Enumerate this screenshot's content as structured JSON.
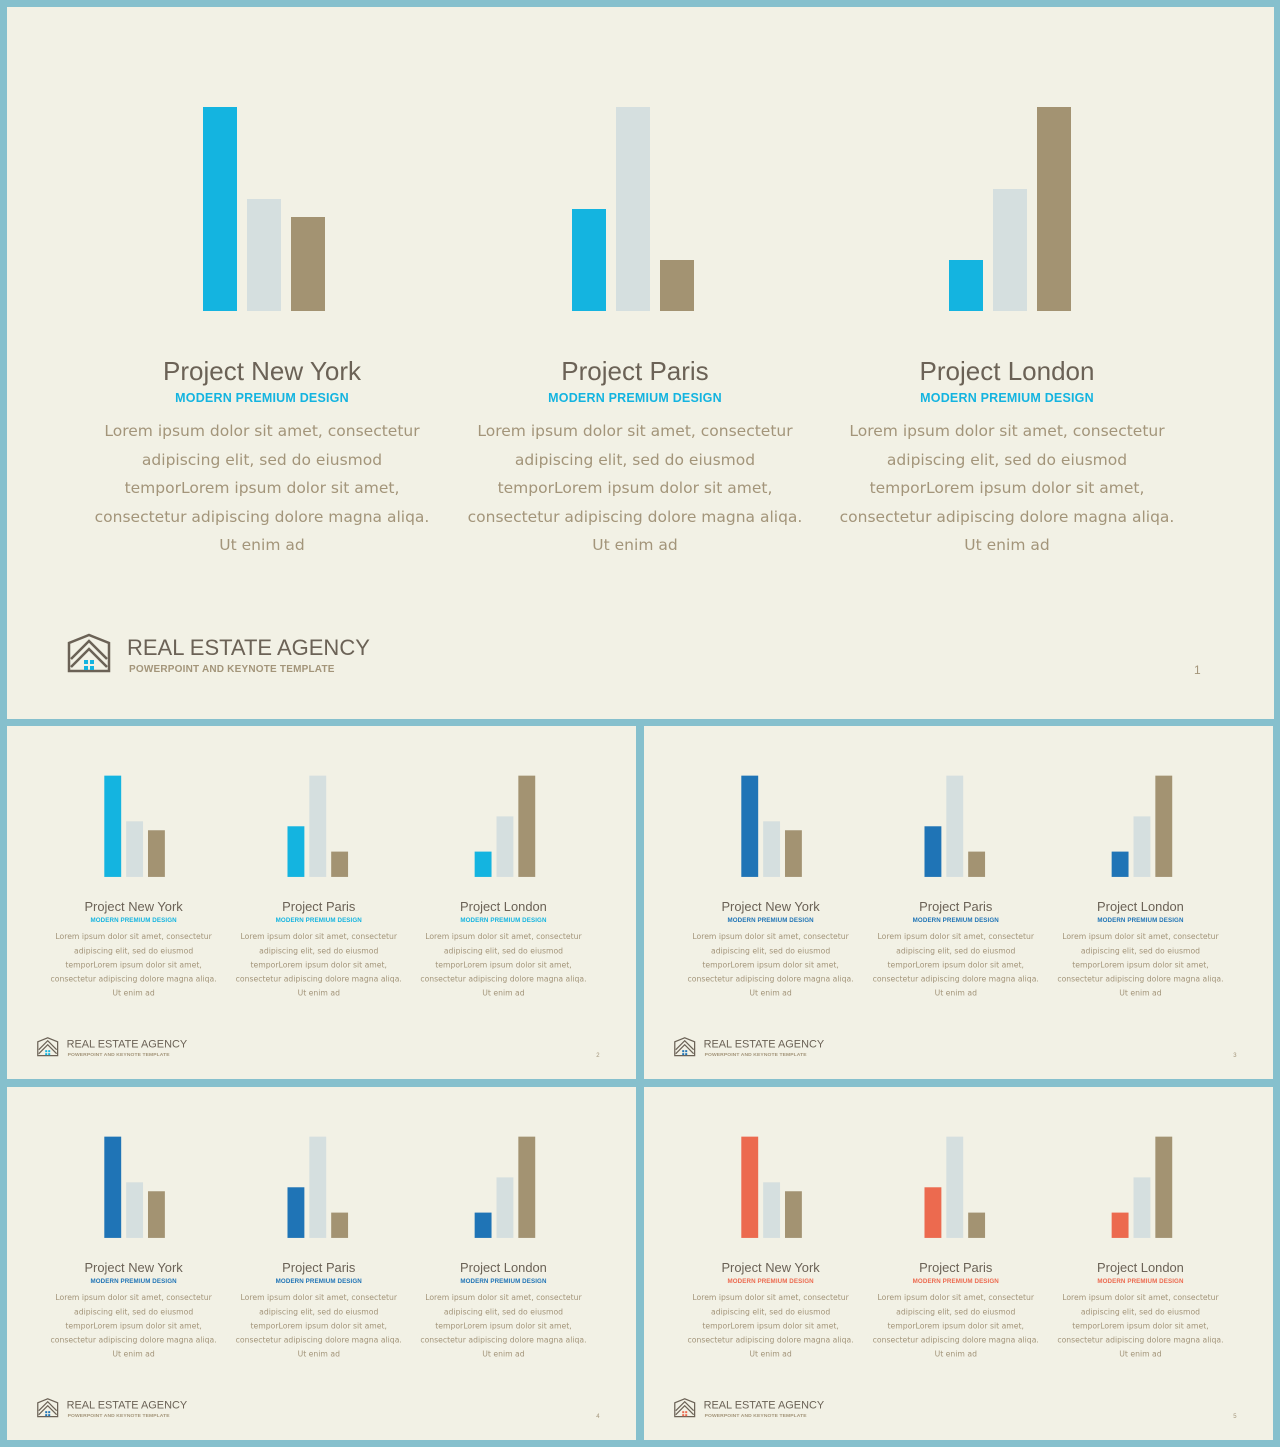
{
  "slides": [
    {
      "page_number": "1",
      "accent_color": "#14b4e0",
      "projects": [
        {
          "title": "Project New York",
          "subtitle": "MODERN PREMIUM DESIGN",
          "body": "Lorem ipsum dolor sit amet, consectetur adipiscing elit, sed do eiusmod temporLorem ipsum dolor sit amet, consectetur adipiscing dolore magna aliqa. Ut enim ad"
        },
        {
          "title": "Project Paris",
          "subtitle": "MODERN PREMIUM DESIGN",
          "body": "Lorem ipsum dolor sit amet, consectetur adipiscing elit, sed do eiusmod temporLorem ipsum dolor sit amet, consectetur adipiscing dolore magna aliqa. Ut enim ad"
        },
        {
          "title": "Project London",
          "subtitle": "MODERN PREMIUM DESIGN",
          "body": "Lorem ipsum dolor sit amet, consectetur adipiscing elit, sed do eiusmod temporLorem ipsum dolor sit amet, consectetur adipiscing dolore magna aliqa. Ut enim ad"
        }
      ]
    },
    {
      "page_number": "2",
      "accent_color": "#14b4e0",
      "projects": [
        {
          "title": "Project New York",
          "subtitle": "MODERN PREMIUM DESIGN",
          "body": "Lorem ipsum dolor sit amet, consectetur adipiscing elit, sed do eiusmod temporLorem ipsum dolor sit amet, consectetur adipiscing dolore magna aliqa. Ut enim ad"
        },
        {
          "title": "Project Paris",
          "subtitle": "MODERN PREMIUM DESIGN",
          "body": "Lorem ipsum dolor sit amet, consectetur adipiscing elit, sed do eiusmod temporLorem ipsum dolor sit amet, consectetur adipiscing dolore magna aliqa. Ut enim ad"
        },
        {
          "title": "Project London",
          "subtitle": "MODERN PREMIUM DESIGN",
          "body": "Lorem ipsum dolor sit amet, consectetur adipiscing elit, sed do eiusmod temporLorem ipsum dolor sit amet, consectetur adipiscing dolore magna aliqa. Ut enim ad"
        }
      ]
    },
    {
      "page_number": "3",
      "accent_color": "#1f74b6",
      "projects": [
        {
          "title": "Project New York",
          "subtitle": "MODERN PREMIUM DESIGN",
          "body": "Lorem ipsum dolor sit amet, consectetur adipiscing elit, sed do eiusmod temporLorem ipsum dolor sit amet, consectetur adipiscing dolore magna aliqa. Ut enim ad"
        },
        {
          "title": "Project Paris",
          "subtitle": "MODERN PREMIUM DESIGN",
          "body": "Lorem ipsum dolor sit amet, consectetur adipiscing elit, sed do eiusmod temporLorem ipsum dolor sit amet, consectetur adipiscing dolore magna aliqa. Ut enim ad"
        },
        {
          "title": "Project London",
          "subtitle": "MODERN PREMIUM DESIGN",
          "body": "Lorem ipsum dolor sit amet, consectetur adipiscing elit, sed do eiusmod temporLorem ipsum dolor sit amet, consectetur adipiscing dolore magna aliqa. Ut enim ad"
        }
      ]
    },
    {
      "page_number": "4",
      "accent_color": "#1f74b6",
      "projects": [
        {
          "title": "Project New York",
          "subtitle": "MODERN PREMIUM DESIGN",
          "body": "Lorem ipsum dolor sit amet, consectetur adipiscing elit, sed do eiusmod temporLorem ipsum dolor sit amet, consectetur adipiscing dolore magna aliqa. Ut enim ad"
        },
        {
          "title": "Project Paris",
          "subtitle": "MODERN PREMIUM DESIGN",
          "body": "Lorem ipsum dolor sit amet, consectetur adipiscing elit, sed do eiusmod temporLorem ipsum dolor sit amet, consectetur adipiscing dolore magna aliqa. Ut enim ad"
        },
        {
          "title": "Project London",
          "subtitle": "MODERN PREMIUM DESIGN",
          "body": "Lorem ipsum dolor sit amet, consectetur adipiscing elit, sed do eiusmod temporLorem ipsum dolor sit amet, consectetur adipiscing dolore magna aliqa. Ut enim ad"
        }
      ]
    },
    {
      "page_number": "5",
      "accent_color": "#ec6a4f",
      "projects": [
        {
          "title": "Project New York",
          "subtitle": "MODERN PREMIUM DESIGN",
          "body": "Lorem ipsum dolor sit amet, consectetur adipiscing elit, sed do eiusmod temporLorem ipsum dolor sit amet, consectetur adipiscing dolore magna aliqa. Ut enim ad"
        },
        {
          "title": "Project Paris",
          "subtitle": "MODERN PREMIUM DESIGN",
          "body": "Lorem ipsum dolor sit amet, consectetur adipiscing elit, sed do eiusmod temporLorem ipsum dolor sit amet, consectetur adipiscing dolore magna aliqa. Ut enim ad"
        },
        {
          "title": "Project London",
          "subtitle": "MODERN PREMIUM DESIGN",
          "body": "Lorem ipsum dolor sit amet, consectetur adipiscing elit, sed do eiusmod temporLorem ipsum dolor sit amet, consectetur adipiscing dolore magna aliqa. Ut enim ad"
        }
      ]
    }
  ],
  "footer": {
    "brand": "REAL ESTATE AGENCY",
    "tagline": "POWERPOINT AND KEYNOTE TEMPLATE",
    "logo_icon": "house-chevron-logo-icon"
  },
  "colors": {
    "background": "#f2f1e5",
    "frame": "#86c0cd",
    "bar_light": "#d5dfdf",
    "bar_tan": "#a39372",
    "title_text": "#6b6256",
    "body_text": "#a3957a"
  },
  "chart_data": [
    {
      "type": "bar",
      "title": "Project New York",
      "categories": [
        "",
        "",
        ""
      ],
      "values": [
        1.0,
        0.55,
        0.46
      ]
    },
    {
      "type": "bar",
      "title": "Project Paris",
      "categories": [
        "",
        "",
        ""
      ],
      "values": [
        0.5,
        1.0,
        0.25
      ]
    },
    {
      "type": "bar",
      "title": "Project London",
      "categories": [
        "",
        "",
        ""
      ],
      "values": [
        0.25,
        0.6,
        1.0
      ]
    }
  ]
}
